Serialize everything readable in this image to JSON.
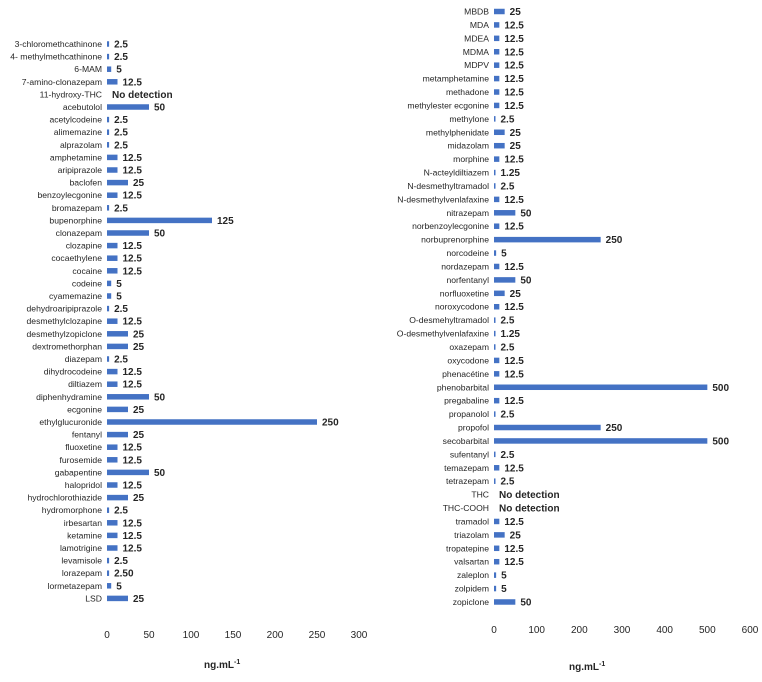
{
  "chart_data": [
    {
      "type": "bar",
      "orientation": "horizontal",
      "xlabel": "ng.mL",
      "xlabel_superscript": "-1",
      "xlim": [
        0,
        300
      ],
      "xticks": [
        "0",
        "50",
        "100",
        "150",
        "200",
        "250",
        "300"
      ],
      "bar_color": "#4472c4",
      "categories": [
        "3-chloromethcathinone",
        "4- methylmethcathinone",
        "6-MAM",
        "7-amino-clonazepam",
        "11-hydroxy-THC",
        "acebutolol",
        "acetylcodeine",
        "alimemazine",
        "alprazolam",
        "amphetamine",
        "aripiprazole",
        "baclofen",
        "benzoylecgonine",
        "bromazepam",
        "bupenorphine",
        "clonazepam",
        "clozapine",
        "cocaethylene",
        "cocaine",
        "codeine",
        "cyamemazine",
        "dehydroaripiprazole",
        "desmethylclozapine",
        "desmethylzopiclone",
        "dextromethorphan",
        "diazepam",
        "dihydrocodeine",
        "diltiazem",
        "diphenhydramine",
        "ecgonine",
        "ethylglucuronide",
        "fentanyl",
        "fluoxetine",
        "furosemide",
        "gabapentine",
        "halopridol",
        "hydrochlorothiazide",
        "hydromorphone",
        "irbesartan",
        "ketamine",
        "lamotrigine",
        "levamisole",
        "lorazepam",
        "lormetazepam",
        "LSD"
      ],
      "values": [
        2.5,
        2.5,
        5,
        12.5,
        0,
        50,
        2.5,
        2.5,
        2.5,
        12.5,
        12.5,
        25,
        12.5,
        2.5,
        125,
        50,
        12.5,
        12.5,
        12.5,
        5,
        5,
        2.5,
        12.5,
        25,
        25,
        2.5,
        12.5,
        12.5,
        50,
        25,
        250,
        25,
        12.5,
        12.5,
        50,
        12.5,
        25,
        2.5,
        12.5,
        12.5,
        12.5,
        2.5,
        2.5,
        5,
        25
      ],
      "labels": [
        "2.5",
        "2.5",
        "5",
        "12.5",
        "No detection",
        "50",
        "2.5",
        "2.5",
        "2.5",
        "12.5",
        "12.5",
        "25",
        "12.5",
        "2.5",
        "125",
        "50",
        "12.5",
        "12.5",
        "12.5",
        "5",
        "5",
        "2.5",
        "12.5",
        "25",
        "25",
        "2.5",
        "12.5",
        "12.5",
        "50",
        "25",
        "250",
        "25",
        "12.5",
        "12.5",
        "50",
        "12.5",
        "25",
        "2.5",
        "12.5",
        "12.5",
        "12.5",
        "2.5",
        "2.50",
        "5",
        "25"
      ]
    },
    {
      "type": "bar",
      "orientation": "horizontal",
      "xlabel": "ng.mL",
      "xlabel_superscript": "-1",
      "xlim": [
        0,
        600
      ],
      "xticks": [
        "0",
        "100",
        "200",
        "300",
        "400",
        "500",
        "600"
      ],
      "bar_color": "#4472c4",
      "categories": [
        "MBDB",
        "MDA",
        "MDEA",
        "MDMA",
        "MDPV",
        "metamphetamine",
        "methadone",
        "methylester ecgonine",
        "methylone",
        "methylphenidate",
        "midazolam",
        "morphine",
        "N-acteyldiltiazem",
        "N-desmethyltramadol",
        "N-desmethylvenlafaxine",
        "nitrazepam",
        "norbenzoylecgonine",
        "norbuprenorphine",
        "norcodeine",
        "nordazepam",
        "norfentanyl",
        "norfluoxetine",
        "noroxycodone",
        "O-desmehyltramadol",
        "O-desmethylvenlafaxine",
        "oxazepam",
        "oxycodone",
        "phenacétine",
        "phenobarbital",
        "pregabaline",
        "propanolol",
        "propofol",
        "secobarbital",
        "sufentanyl",
        "temazepam",
        "tetrazepam",
        "THC",
        "THC-COOH",
        "tramadol",
        "triazolam",
        "tropatepine",
        "valsartan",
        "zaleplon",
        "zolpidem",
        "zopiclone"
      ],
      "values": [
        25,
        12.5,
        12.5,
        12.5,
        12.5,
        12.5,
        12.5,
        12.5,
        2.5,
        25,
        25,
        12.5,
        1.25,
        2.5,
        12.5,
        50,
        12.5,
        250,
        5,
        12.5,
        50,
        25,
        12.5,
        2.5,
        1.25,
        2.5,
        12.5,
        12.5,
        500,
        12.5,
        2.5,
        250,
        500,
        2.5,
        12.5,
        2.5,
        0,
        0,
        12.5,
        25,
        12.5,
        12.5,
        5,
        5,
        50
      ],
      "labels": [
        "25",
        "12.5",
        "12.5",
        "12.5",
        "12.5",
        "12.5",
        "12.5",
        "12.5",
        "2.5",
        "25",
        "25",
        "12.5",
        "1.25",
        "2.5",
        "12.5",
        "50",
        "12.5",
        "250",
        "5",
        "12.5",
        "50",
        "25",
        "12.5",
        "2.5",
        "1.25",
        "2.5",
        "12.5",
        "12.5",
        "500",
        "12.5",
        "2.5",
        "250",
        "500",
        "2.5",
        "12.5",
        "2.5",
        "No detection",
        "No detection",
        "12.5",
        "25",
        "12.5",
        "12.5",
        "5",
        "5",
        "50"
      ]
    }
  ]
}
